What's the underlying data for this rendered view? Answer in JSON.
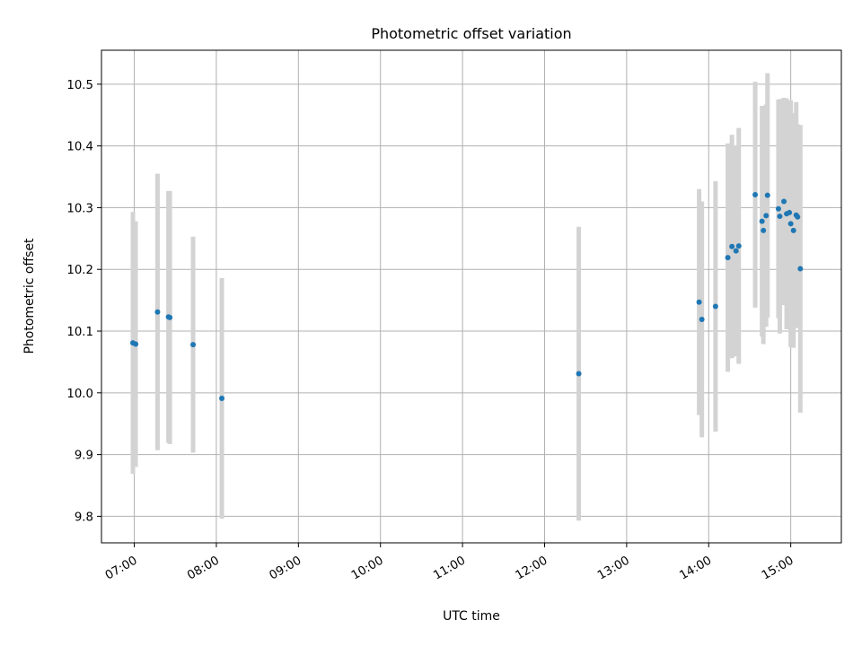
{
  "chart_data": {
    "type": "scatter",
    "title": "Photometric offset variation",
    "xlabel": "UTC time",
    "ylabel": "Photometric offset",
    "grid": true,
    "x_axis": "time",
    "xlim": [
      "06:36",
      "15:37"
    ],
    "ylim": [
      9.757,
      10.555
    ],
    "xticks": [
      "07:00",
      "08:00",
      "09:00",
      "10:00",
      "11:00",
      "12:00",
      "13:00",
      "14:00",
      "15:00"
    ],
    "yticks": [
      9.8,
      9.9,
      10.0,
      10.1,
      10.2,
      10.3,
      10.4,
      10.5
    ],
    "ytick_labels": [
      "9.8",
      "9.9",
      "10.0",
      "10.1",
      "10.2",
      "10.3",
      "10.4",
      "10.5"
    ],
    "colors": {
      "marker": "#1f77b4",
      "errorbar": "#d3d3d3",
      "grid": "#b0b0b0"
    },
    "series": [
      {
        "x": [
          "06:59",
          "07:01",
          "07:17",
          "07:25",
          "07:26",
          "07:43",
          "08:04",
          "12:25",
          "13:53",
          "13:55",
          "14:05",
          "14:14",
          "14:17",
          "14:20",
          "14:22",
          "14:34",
          "14:39",
          "14:40",
          "14:42",
          "14:43",
          "14:51",
          "14:52",
          "14:55",
          "14:57",
          "14:59",
          "15:00",
          "15:02",
          "15:04",
          "15:05",
          "15:07"
        ],
        "y": [
          10.081,
          10.079,
          10.131,
          10.123,
          10.122,
          10.078,
          9.991,
          10.031,
          10.147,
          10.119,
          10.14,
          10.219,
          10.237,
          10.23,
          10.238,
          10.321,
          10.278,
          10.263,
          10.287,
          10.32,
          10.298,
          10.286,
          10.31,
          10.29,
          10.292,
          10.274,
          10.263,
          10.288,
          10.285,
          10.201
        ],
        "yerr": [
          0.212,
          0.199,
          0.224,
          0.204,
          0.205,
          0.175,
          0.195,
          0.238,
          0.183,
          0.191,
          0.203,
          0.185,
          0.181,
          0.171,
          0.191,
          0.183,
          0.187,
          0.184,
          0.18,
          0.198,
          0.177,
          0.19,
          0.168,
          0.187,
          0.181,
          0.2,
          0.19,
          0.183,
          0.15,
          0.233
        ]
      }
    ]
  }
}
